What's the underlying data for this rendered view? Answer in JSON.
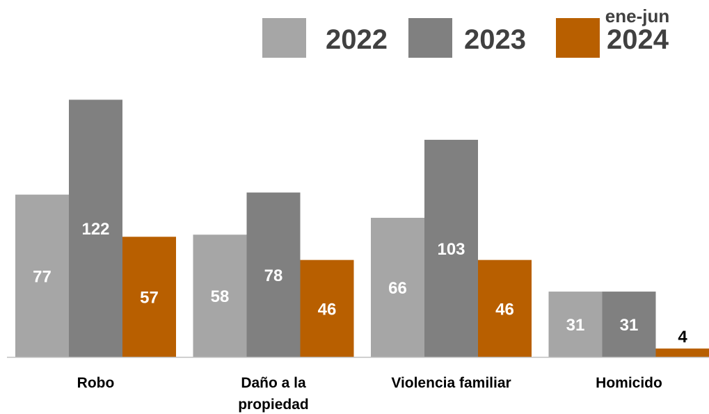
{
  "chart_data": {
    "type": "bar",
    "categories": [
      [
        "Robo"
      ],
      [
        "Daño a la",
        "propiedad"
      ],
      [
        "Violencia familiar"
      ],
      [
        "Homicido"
      ]
    ],
    "series": [
      {
        "name": "2022",
        "values": [
          77,
          58,
          66,
          31
        ],
        "color": "#a6a6a6"
      },
      {
        "name": "2023",
        "values": [
          122,
          78,
          103,
          31
        ],
        "color": "#808080"
      },
      {
        "name": "2024",
        "note": "ene-jun",
        "values": [
          57,
          46,
          46,
          4
        ],
        "color": "#b85f00"
      }
    ],
    "ylim": [
      0,
      130
    ],
    "grid": false,
    "legend_position": "top-right",
    "label_colors": {
      "inside": "#ffffff",
      "outside": "#000000"
    }
  }
}
